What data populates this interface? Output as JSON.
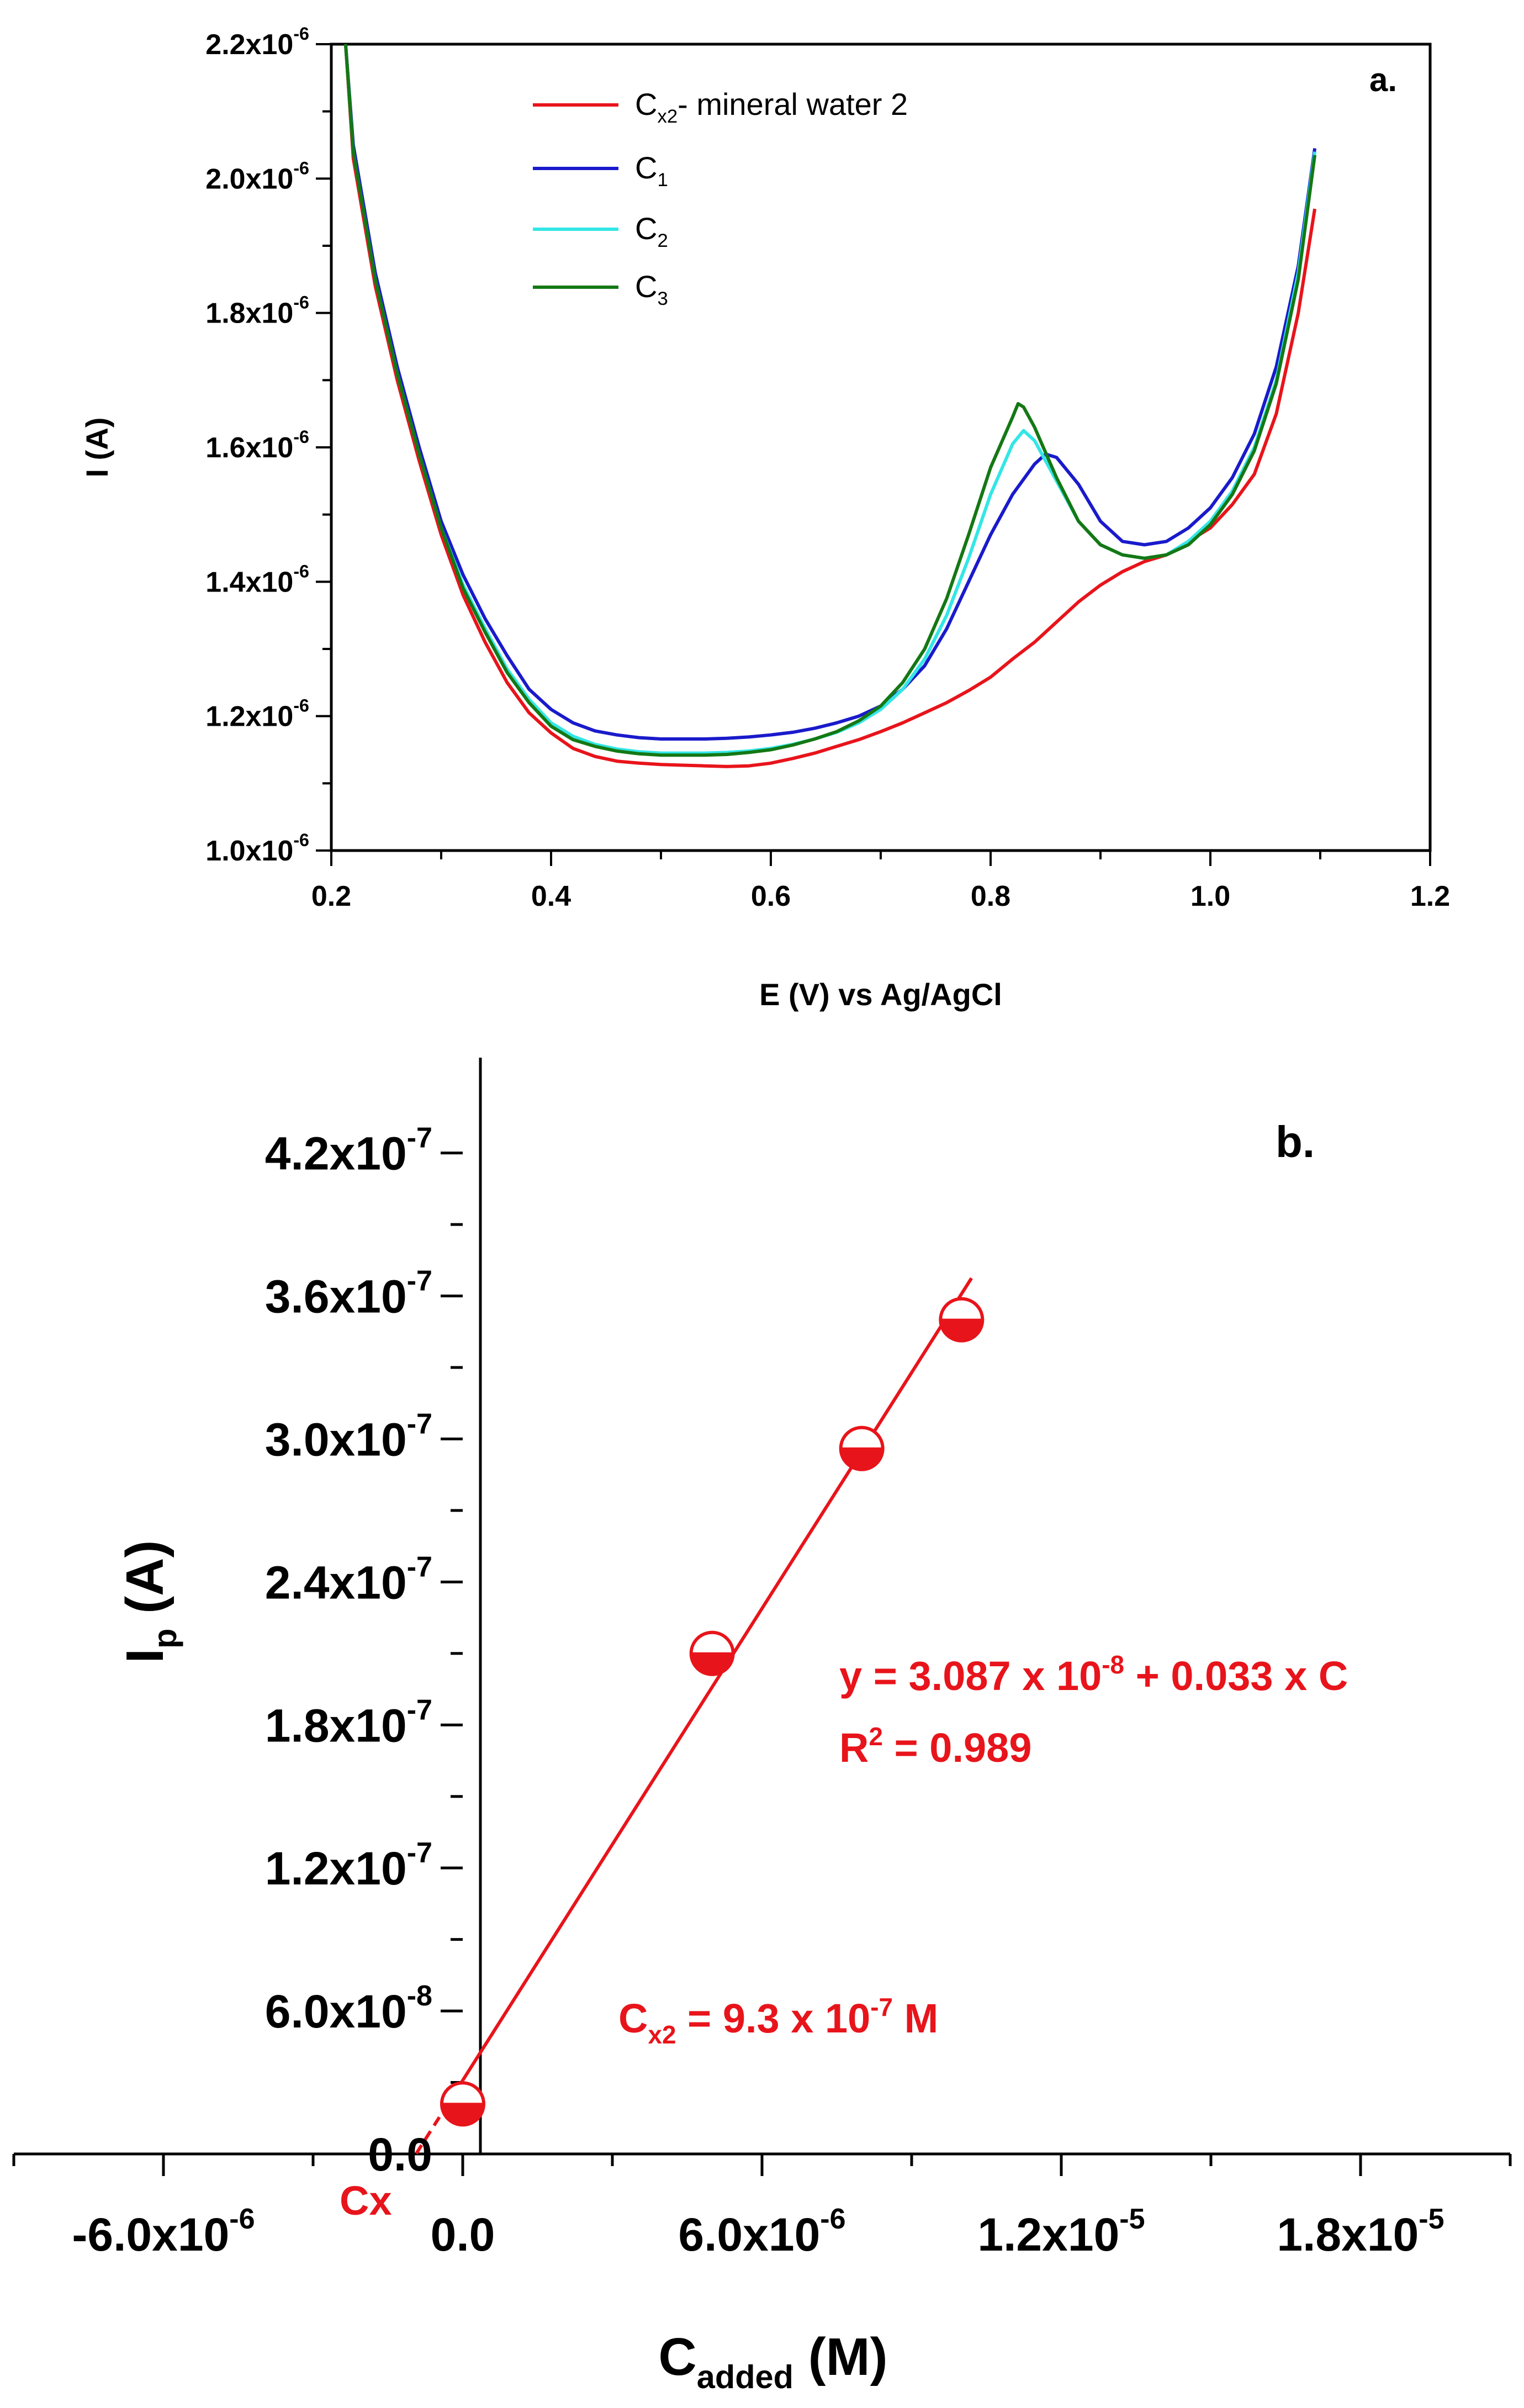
{
  "colors": {
    "axis": "#000000",
    "red": "#e8141b",
    "blue": "#1a1acb",
    "cyan": "#33e6e6",
    "green": "#147814"
  },
  "chart_data": [
    {
      "panel_label": "a.",
      "type": "line",
      "xlabel": "E (V) vs Ag/AgCl",
      "ylabel": "I (A)",
      "xlim": [
        0.2,
        1.2
      ],
      "ylim": [
        1e-06,
        2.2e-06
      ],
      "x_ticks": [
        0.2,
        0.4,
        0.6,
        0.8,
        1.0,
        1.2
      ],
      "x_tick_labels": [
        "0.2",
        "0.4",
        "0.6",
        "0.8",
        "1.0",
        "1.2"
      ],
      "y_ticks": [
        1e-06,
        1.2e-06,
        1.4e-06,
        1.6e-06,
        1.8e-06,
        2e-06,
        2.2e-06
      ],
      "y_tick_labels": [
        {
          "mant": "1.0x10",
          "exp": "-6"
        },
        {
          "mant": "1.2x10",
          "exp": "-6"
        },
        {
          "mant": "1.4x10",
          "exp": "-6"
        },
        {
          "mant": "1.6x10",
          "exp": "-6"
        },
        {
          "mant": "1.8x10",
          "exp": "-6"
        },
        {
          "mant": "2.0x10",
          "exp": "-6"
        },
        {
          "mant": "2.2x10",
          "exp": "-6"
        }
      ],
      "legend": [
        {
          "base": "C",
          "sub": "x2",
          "tail": "- mineral water 2",
          "color_key": "red"
        },
        {
          "base": "C",
          "sub": "1",
          "tail": "",
          "color_key": "blue"
        },
        {
          "base": "C",
          "sub": "2",
          "tail": "",
          "color_key": "cyan"
        },
        {
          "base": "C",
          "sub": "3",
          "tail": "",
          "color_key": "green"
        }
      ],
      "series": [
        {
          "name": "Cx2 - mineral water 2",
          "color_key": "red",
          "x": [
            0.213,
            0.22,
            0.24,
            0.26,
            0.28,
            0.3,
            0.32,
            0.34,
            0.36,
            0.38,
            0.4,
            0.42,
            0.44,
            0.46,
            0.48,
            0.5,
            0.52,
            0.54,
            0.56,
            0.58,
            0.6,
            0.62,
            0.64,
            0.66,
            0.68,
            0.7,
            0.72,
            0.74,
            0.76,
            0.78,
            0.8,
            0.82,
            0.84,
            0.86,
            0.88,
            0.9,
            0.92,
            0.94,
            0.96,
            0.98,
            1.0,
            1.02,
            1.04,
            1.06,
            1.08,
            1.095
          ],
          "y": [
            2.2e-06,
            2.03e-06,
            1.84e-06,
            1.7e-06,
            1.58e-06,
            1.47e-06,
            1.38e-06,
            1.31e-06,
            1.25e-06,
            1.205e-06,
            1.175e-06,
            1.152e-06,
            1.14e-06,
            1.133e-06,
            1.13e-06,
            1.128e-06,
            1.127e-06,
            1.126e-06,
            1.125e-06,
            1.126e-06,
            1.13e-06,
            1.137e-06,
            1.145e-06,
            1.155e-06,
            1.165e-06,
            1.177e-06,
            1.19e-06,
            1.205e-06,
            1.22e-06,
            1.238e-06,
            1.258e-06,
            1.285e-06,
            1.31e-06,
            1.34e-06,
            1.37e-06,
            1.395e-06,
            1.415e-06,
            1.43e-06,
            1.44e-06,
            1.46e-06,
            1.48e-06,
            1.515e-06,
            1.56e-06,
            1.65e-06,
            1.8e-06,
            1.955e-06
          ]
        },
        {
          "name": "C1",
          "color_key": "blue",
          "x": [
            0.213,
            0.22,
            0.24,
            0.26,
            0.28,
            0.3,
            0.32,
            0.34,
            0.36,
            0.38,
            0.4,
            0.42,
            0.44,
            0.46,
            0.48,
            0.5,
            0.52,
            0.54,
            0.56,
            0.58,
            0.6,
            0.62,
            0.64,
            0.66,
            0.68,
            0.7,
            0.72,
            0.74,
            0.76,
            0.78,
            0.8,
            0.82,
            0.84,
            0.85,
            0.86,
            0.88,
            0.9,
            0.92,
            0.94,
            0.96,
            0.98,
            1.0,
            1.02,
            1.04,
            1.06,
            1.08,
            1.095
          ],
          "y": [
            2.2e-06,
            2.05e-06,
            1.86e-06,
            1.72e-06,
            1.6e-06,
            1.49e-06,
            1.41e-06,
            1.345e-06,
            1.29e-06,
            1.24e-06,
            1.21e-06,
            1.19e-06,
            1.178e-06,
            1.172e-06,
            1.168e-06,
            1.166e-06,
            1.166e-06,
            1.166e-06,
            1.167e-06,
            1.169e-06,
            1.172e-06,
            1.176e-06,
            1.182e-06,
            1.19e-06,
            1.2e-06,
            1.215e-06,
            1.24e-06,
            1.275e-06,
            1.33e-06,
            1.4e-06,
            1.47e-06,
            1.53e-06,
            1.575e-06,
            1.59e-06,
            1.585e-06,
            1.545e-06,
            1.49e-06,
            1.46e-06,
            1.455e-06,
            1.46e-06,
            1.48e-06,
            1.51e-06,
            1.555e-06,
            1.62e-06,
            1.72e-06,
            1.87e-06,
            2.045e-06
          ]
        },
        {
          "name": "C2",
          "color_key": "cyan",
          "x": [
            0.213,
            0.22,
            0.24,
            0.26,
            0.28,
            0.3,
            0.32,
            0.34,
            0.36,
            0.38,
            0.4,
            0.42,
            0.44,
            0.46,
            0.48,
            0.5,
            0.52,
            0.54,
            0.56,
            0.58,
            0.6,
            0.62,
            0.64,
            0.66,
            0.68,
            0.7,
            0.72,
            0.74,
            0.76,
            0.78,
            0.8,
            0.82,
            0.83,
            0.84,
            0.86,
            0.88,
            0.9,
            0.92,
            0.94,
            0.96,
            0.98,
            1.0,
            1.02,
            1.04,
            1.06,
            1.08,
            1.095
          ],
          "y": [
            2.2e-06,
            2.04e-06,
            1.85e-06,
            1.71e-06,
            1.59e-06,
            1.48e-06,
            1.395e-06,
            1.33e-06,
            1.27e-06,
            1.225e-06,
            1.19e-06,
            1.17e-06,
            1.158e-06,
            1.151e-06,
            1.147e-06,
            1.145e-06,
            1.145e-06,
            1.145e-06,
            1.146e-06,
            1.148e-06,
            1.152e-06,
            1.158e-06,
            1.166e-06,
            1.176e-06,
            1.19e-06,
            1.21e-06,
            1.24e-06,
            1.285e-06,
            1.35e-06,
            1.435e-06,
            1.53e-06,
            1.605e-06,
            1.625e-06,
            1.61e-06,
            1.55e-06,
            1.49e-06,
            1.455e-06,
            1.44e-06,
            1.435e-06,
            1.44e-06,
            1.46e-06,
            1.49e-06,
            1.535e-06,
            1.6e-06,
            1.7e-06,
            1.86e-06,
            2.04e-06
          ]
        },
        {
          "name": "C3",
          "color_key": "green",
          "x": [
            0.213,
            0.22,
            0.24,
            0.26,
            0.28,
            0.3,
            0.32,
            0.34,
            0.36,
            0.38,
            0.4,
            0.42,
            0.44,
            0.46,
            0.48,
            0.5,
            0.52,
            0.54,
            0.56,
            0.58,
            0.6,
            0.62,
            0.64,
            0.66,
            0.68,
            0.7,
            0.72,
            0.74,
            0.76,
            0.78,
            0.8,
            0.82,
            0.825,
            0.83,
            0.84,
            0.86,
            0.88,
            0.9,
            0.92,
            0.94,
            0.96,
            0.98,
            1.0,
            1.02,
            1.04,
            1.06,
            1.08,
            1.095
          ],
          "y": [
            2.2e-06,
            2.04e-06,
            1.85e-06,
            1.71e-06,
            1.59e-06,
            1.48e-06,
            1.39e-06,
            1.325e-06,
            1.265e-06,
            1.22e-06,
            1.185e-06,
            1.165e-06,
            1.155e-06,
            1.148e-06,
            1.144e-06,
            1.142e-06,
            1.142e-06,
            1.142e-06,
            1.143e-06,
            1.146e-06,
            1.15e-06,
            1.157e-06,
            1.166e-06,
            1.177e-06,
            1.193e-06,
            1.215e-06,
            1.25e-06,
            1.3e-06,
            1.375e-06,
            1.47e-06,
            1.57e-06,
            1.645e-06,
            1.665e-06,
            1.66e-06,
            1.63e-06,
            1.555e-06,
            1.49e-06,
            1.455e-06,
            1.44e-06,
            1.435e-06,
            1.44e-06,
            1.455e-06,
            1.485e-06,
            1.53e-06,
            1.595e-06,
            1.695e-06,
            1.85e-06,
            2.035e-06
          ]
        }
      ]
    },
    {
      "panel_label": "b.",
      "type": "scatter",
      "xlabel": {
        "base": "C",
        "sub": "added",
        "tail": " (M)"
      },
      "ylabel": {
        "base": "I",
        "sub": "p",
        "tail": " (A)"
      },
      "xlim": [
        -9e-06,
        2.1e-05
      ],
      "ylim": [
        0.0,
        4.6e-07
      ],
      "x_ticks": [
        -6e-06,
        0.0,
        6e-06,
        1.2e-05,
        1.8e-05
      ],
      "x_tick_labels": [
        {
          "mant": "-6.0x10",
          "exp": "-6"
        },
        {
          "mant": "0.0",
          "exp": ""
        },
        {
          "mant": "6.0x10",
          "exp": "-6"
        },
        {
          "mant": "1.2x10",
          "exp": "-5"
        },
        {
          "mant": "1.8x10",
          "exp": "-5"
        }
      ],
      "x_minor_ticks": [
        -9e-06,
        -3e-06,
        3e-06,
        9e-06,
        1.5e-05,
        2.1e-05
      ],
      "y_ticks": [
        0.0,
        6e-08,
        1.2e-07,
        1.8e-07,
        2.4e-07,
        3e-07,
        3.6e-07,
        4.2e-07
      ],
      "y_tick_labels": [
        {
          "mant": "0.0",
          "exp": ""
        },
        {
          "mant": "6.0x10",
          "exp": "-8"
        },
        {
          "mant": "1.2x10",
          "exp": "-7"
        },
        {
          "mant": "1.8x10",
          "exp": "-7"
        },
        {
          "mant": "2.4x10",
          "exp": "-7"
        },
        {
          "mant": "3.0x10",
          "exp": "-7"
        },
        {
          "mant": "3.6x10",
          "exp": "-7"
        },
        {
          "mant": "4.2x10",
          "exp": "-7"
        }
      ],
      "points": [
        {
          "x": 0.0,
          "y": 2.1e-08
        },
        {
          "x": 5e-06,
          "y": 2.1e-07
        },
        {
          "x": 8e-06,
          "y": 2.96e-07
        },
        {
          "x": 1e-05,
          "y": 3.5e-07
        }
      ],
      "fit": {
        "intercept": 3.087e-08,
        "slope": 0.033,
        "x_from": -9.3e-07,
        "x_to": 1.02e-05
      },
      "cx_value": -9.3e-07,
      "equation": {
        "line1_a": "y = 3.087 x 10",
        "line1_exp": "-8",
        "line1_b": " + 0.033 x C",
        "r2_base": "R",
        "r2_exp": "2",
        "r2_tail": " = 0.989"
      },
      "cx_annotation": {
        "base": "C",
        "sub": "x2",
        "tail": " = 9.3 x 10",
        "exp": "-7",
        "unit": " M"
      },
      "cx_label": "Cx"
    }
  ]
}
